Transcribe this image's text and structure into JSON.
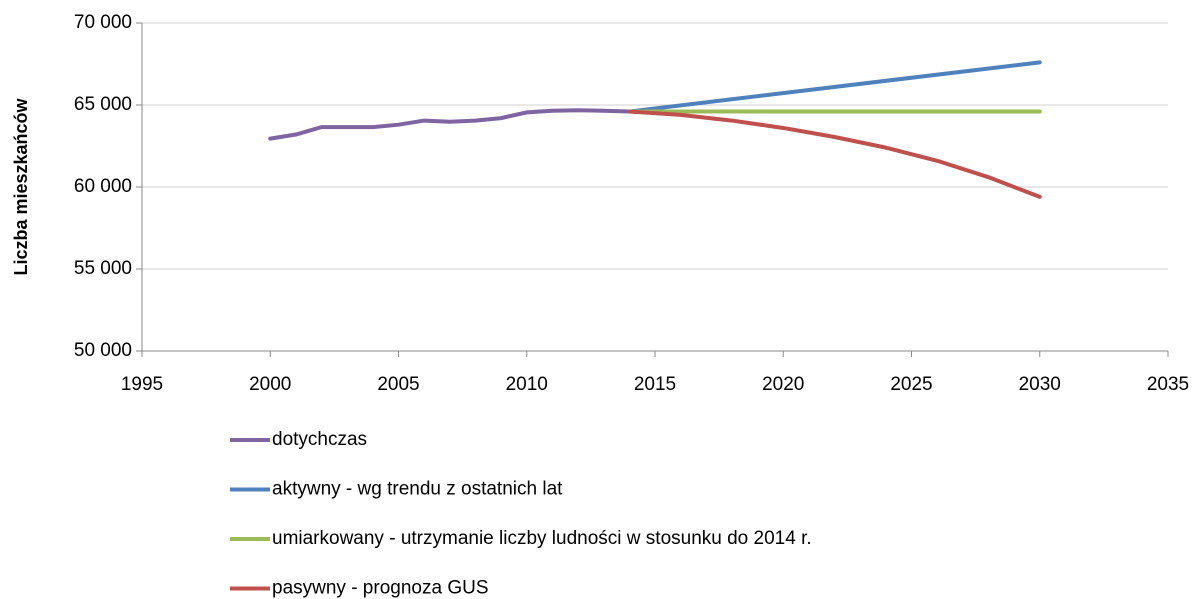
{
  "chart_data": {
    "type": "line",
    "y_label": "Liczba mieszkańców",
    "xlim": [
      1995,
      2035
    ],
    "xticks": [
      1995,
      2000,
      2005,
      2010,
      2015,
      2020,
      2025,
      2030,
      2035
    ],
    "ylim": [
      50000,
      70000
    ],
    "yticks": [
      {
        "value": 50000,
        "label": "50 000"
      },
      {
        "value": 55000,
        "label": "55 000"
      },
      {
        "value": 60000,
        "label": "60 000"
      },
      {
        "value": 65000,
        "label": "65 000"
      },
      {
        "value": 70000,
        "label": "70 000"
      }
    ],
    "grid": true,
    "legend": "bottom",
    "series": [
      {
        "name": "dotychczas",
        "color": "#8064a2",
        "x": [
          2000,
          2001,
          2002,
          2003,
          2004,
          2005,
          2006,
          2007,
          2008,
          2009,
          2010,
          2011,
          2012,
          2013,
          2014
        ],
        "values": [
          62950,
          63200,
          63650,
          63650,
          63650,
          63800,
          64050,
          63980,
          64050,
          64200,
          64550,
          64650,
          64680,
          64650,
          64600
        ]
      },
      {
        "name": "aktywny - wg trendu z ostatnich lat",
        "color": "#4f81bd",
        "x": [
          2014,
          2030
        ],
        "values": [
          64600,
          67600
        ]
      },
      {
        "name": "umiarkowany - utrzymanie liczby ludności w stosunku do 2014 r.",
        "color": "#9bbb59",
        "x": [
          2014,
          2030
        ],
        "values": [
          64600,
          64600
        ]
      },
      {
        "name": "pasywny - prognoza GUS",
        "color": "#c0504d",
        "x": [
          2014,
          2016,
          2018,
          2020,
          2022,
          2024,
          2026,
          2028,
          2030
        ],
        "values": [
          64600,
          64400,
          64050,
          63600,
          63050,
          62400,
          61600,
          60600,
          59400
        ]
      }
    ]
  }
}
